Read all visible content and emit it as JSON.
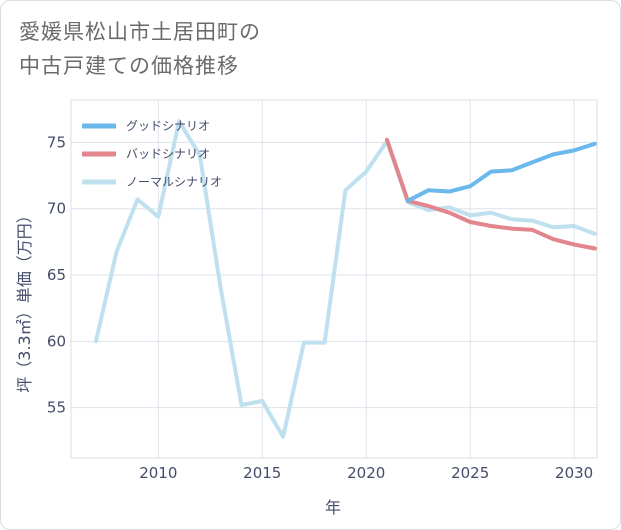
{
  "title_line1": "愛媛県松山市土居田町の",
  "title_line2": "中古戸建ての価格推移",
  "chart_data": {
    "type": "line",
    "xlabel": "年",
    "ylabel": "坪（3.3㎡）単価（万円）",
    "xlim": [
      2005.8,
      2031.1
    ],
    "ylim": [
      51.2,
      78.2
    ],
    "xticks": [
      2010,
      2015,
      2020,
      2025,
      2030
    ],
    "yticks": [
      55,
      60,
      65,
      70,
      75
    ],
    "grid": true,
    "legend_position": "top-left",
    "series": [
      {
        "name": "グッドシナリオ",
        "color": "#6bb8ec",
        "x": [
          2022,
          2023,
          2024,
          2025,
          2026,
          2027,
          2028,
          2029,
          2030,
          2031
        ],
        "values": [
          70.6,
          71.4,
          71.3,
          71.7,
          72.8,
          72.9,
          73.5,
          74.1,
          74.4,
          74.9
        ]
      },
      {
        "name": "バッドシナリオ",
        "color": "#e0868c",
        "x": [
          2021,
          2022,
          2023,
          2024,
          2025,
          2026,
          2027,
          2028,
          2029,
          2030,
          2031
        ],
        "values": [
          75.2,
          70.6,
          70.2,
          69.7,
          69.0,
          68.7,
          68.5,
          68.4,
          67.7,
          67.3,
          67.0
        ]
      },
      {
        "name": "ノーマルシナリオ",
        "color": "#bfe0ee",
        "x": [
          2007,
          2008,
          2009,
          2010,
          2011,
          2012,
          2013,
          2014,
          2015,
          2016,
          2017,
          2018,
          2019,
          2020,
          2021,
          2022,
          2023,
          2024,
          2025,
          2026,
          2027,
          2028,
          2029,
          2030,
          2031
        ],
        "values": [
          60.0,
          66.8,
          70.7,
          69.4,
          76.6,
          74.0,
          64.0,
          55.2,
          55.5,
          52.8,
          59.9,
          59.9,
          71.4,
          72.8,
          75.1,
          70.5,
          69.9,
          70.1,
          69.5,
          69.7,
          69.2,
          69.1,
          68.6,
          68.7,
          68.1
        ]
      }
    ]
  }
}
